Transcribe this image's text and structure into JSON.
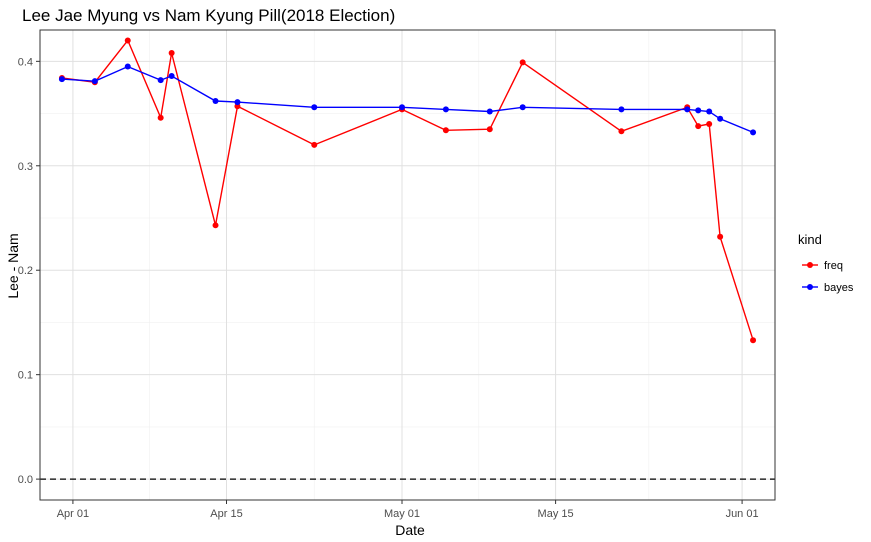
{
  "chart_data": {
    "type": "line",
    "title": "Lee Jae Myung vs Nam Kyung Pill(2018 Election)",
    "xlabel": "Date",
    "ylabel": "Lee - Nam",
    "xlim": [
      "2018-03-29",
      "2018-06-04"
    ],
    "ylim": [
      -0.02,
      0.43
    ],
    "x_ticks": [
      {
        "date": "2018-04-01",
        "label": "Apr 01"
      },
      {
        "date": "2018-04-15",
        "label": "Apr 15"
      },
      {
        "date": "2018-05-01",
        "label": "May 01"
      },
      {
        "date": "2018-05-15",
        "label": "May 15"
      },
      {
        "date": "2018-06-01",
        "label": "Jun 01"
      }
    ],
    "y_ticks": [
      {
        "value": 0.0,
        "label": "0.0"
      },
      {
        "value": 0.1,
        "label": "0.1"
      },
      {
        "value": 0.2,
        "label": "0.2"
      },
      {
        "value": 0.3,
        "label": "0.3"
      },
      {
        "value": 0.4,
        "label": "0.4"
      }
    ],
    "grid": true,
    "reference_line": {
      "y": 0,
      "style": "dashed",
      "color": "#000000"
    },
    "legend": {
      "title": "kind",
      "position": "right"
    },
    "series": [
      {
        "name": "freq",
        "color": "#ff0000",
        "points": [
          {
            "x": "2018-03-31",
            "y": 0.384
          },
          {
            "x": "2018-04-03",
            "y": 0.38
          },
          {
            "x": "2018-04-06",
            "y": 0.42
          },
          {
            "x": "2018-04-09",
            "y": 0.346
          },
          {
            "x": "2018-04-10",
            "y": 0.408
          },
          {
            "x": "2018-04-14",
            "y": 0.243
          },
          {
            "x": "2018-04-16",
            "y": 0.357
          },
          {
            "x": "2018-04-23",
            "y": 0.32
          },
          {
            "x": "2018-05-01",
            "y": 0.354
          },
          {
            "x": "2018-05-05",
            "y": 0.334
          },
          {
            "x": "2018-05-09",
            "y": 0.335
          },
          {
            "x": "2018-05-12",
            "y": 0.399
          },
          {
            "x": "2018-05-21",
            "y": 0.333
          },
          {
            "x": "2018-05-27",
            "y": 0.356
          },
          {
            "x": "2018-05-28",
            "y": 0.338
          },
          {
            "x": "2018-05-29",
            "y": 0.34
          },
          {
            "x": "2018-05-30",
            "y": 0.232
          },
          {
            "x": "2018-06-02",
            "y": 0.133
          }
        ]
      },
      {
        "name": "bayes",
        "color": "#0000ff",
        "points": [
          {
            "x": "2018-03-31",
            "y": 0.383
          },
          {
            "x": "2018-04-03",
            "y": 0.381
          },
          {
            "x": "2018-04-06",
            "y": 0.395
          },
          {
            "x": "2018-04-09",
            "y": 0.382
          },
          {
            "x": "2018-04-10",
            "y": 0.386
          },
          {
            "x": "2018-04-14",
            "y": 0.362
          },
          {
            "x": "2018-04-16",
            "y": 0.361
          },
          {
            "x": "2018-04-23",
            "y": 0.356
          },
          {
            "x": "2018-05-01",
            "y": 0.356
          },
          {
            "x": "2018-05-05",
            "y": 0.354
          },
          {
            "x": "2018-05-09",
            "y": 0.352
          },
          {
            "x": "2018-05-12",
            "y": 0.356
          },
          {
            "x": "2018-05-21",
            "y": 0.354
          },
          {
            "x": "2018-05-27",
            "y": 0.354
          },
          {
            "x": "2018-05-28",
            "y": 0.353
          },
          {
            "x": "2018-05-29",
            "y": 0.352
          },
          {
            "x": "2018-05-30",
            "y": 0.345
          },
          {
            "x": "2018-06-02",
            "y": 0.332
          }
        ]
      }
    ]
  }
}
